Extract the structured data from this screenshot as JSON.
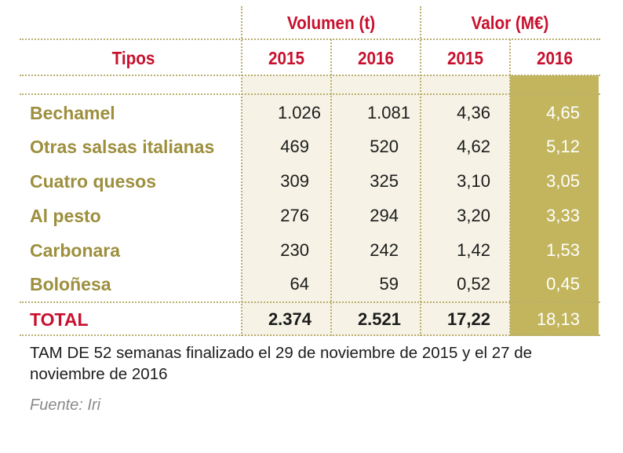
{
  "header": {
    "group_volume": "Volumen (t)",
    "group_value": "Valor (M€)",
    "col_types": "Tipos",
    "years": [
      "2015",
      "2016",
      "2015",
      "2016"
    ]
  },
  "rows": [
    {
      "type": "Bechamel",
      "vol_2015": "1.026",
      "vol_2016": "1.081",
      "val_2015": "4,36",
      "val_2016": "4,65"
    },
    {
      "type": "Otras salsas italianas",
      "vol_2015": "469",
      "vol_2016": "520",
      "val_2015": "4,62",
      "val_2016": "5,12"
    },
    {
      "type": "Cuatro quesos",
      "vol_2015": "309",
      "vol_2016": "325",
      "val_2015": "3,10",
      "val_2016": "3,05"
    },
    {
      "type": "Al pesto",
      "vol_2015": "276",
      "vol_2016": "294",
      "val_2015": "3,20",
      "val_2016": "3,33"
    },
    {
      "type": "Carbonara",
      "vol_2015": "230",
      "vol_2016": "242",
      "val_2015": "1,42",
      "val_2016": "1,53"
    },
    {
      "type": "Boloñesa",
      "vol_2015": "64",
      "vol_2016": "59",
      "val_2015": "0,52",
      "val_2016": "0,45"
    }
  ],
  "total": {
    "label": "TOTAL",
    "vol_2015": "2.374",
    "vol_2016": "2.521",
    "val_2015": "17,22",
    "val_2016": "18,13"
  },
  "footnote": "TAM DE 52 semanas finalizado el 29 de noviembre de 2015 y el 27 de noviembre de 2016",
  "source": "Fuente: Iri",
  "colors": {
    "header_red": "#c8102e",
    "label_olive": "#9d8f3e",
    "highlight_olive": "#c2b55d",
    "cream": "#f6f3e6"
  }
}
